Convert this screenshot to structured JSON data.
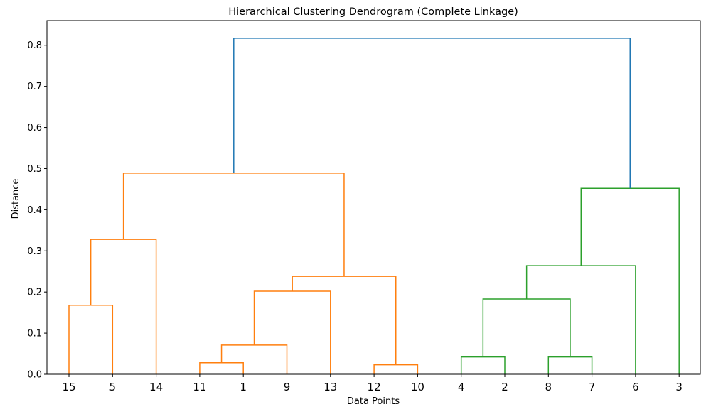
{
  "chart_data": {
    "type": "dendrogram",
    "title": "Hierarchical Clustering Dendrogram (Complete Linkage)",
    "xlabel": "Data Points",
    "ylabel": "Distance",
    "ylim": [
      0,
      0.86
    ],
    "yticks": [
      "0.0",
      "0.1",
      "0.2",
      "0.3",
      "0.4",
      "0.5",
      "0.6",
      "0.7",
      "0.8"
    ],
    "grid": false,
    "leaves": [
      "15",
      "5",
      "14",
      "11",
      "1",
      "9",
      "13",
      "12",
      "10",
      "4",
      "2",
      "8",
      "7",
      "6",
      "3"
    ],
    "colors": {
      "orange": "#ff7f0e",
      "green": "#2ca02c",
      "blue": "#1f77b4"
    },
    "links": [
      {
        "left": 0,
        "right": 1,
        "height": 0.168,
        "color": "orange"
      },
      {
        "left": 0.5,
        "right": 2,
        "height": 0.328,
        "color": "orange"
      },
      {
        "left": 3,
        "right": 4,
        "height": 0.028,
        "color": "orange"
      },
      {
        "left": 3.5,
        "right": 5,
        "height": 0.071,
        "color": "orange"
      },
      {
        "left": 4.25,
        "right": 6,
        "height": 0.202,
        "color": "orange"
      },
      {
        "left": 7,
        "right": 8,
        "height": 0.023,
        "color": "orange"
      },
      {
        "left": 5.125,
        "right": 7.5,
        "height": 0.238,
        "color": "orange"
      },
      {
        "left": 1.25,
        "right": 6.3125,
        "height": 0.489,
        "color": "orange"
      },
      {
        "left": 9,
        "right": 10,
        "height": 0.042,
        "color": "green"
      },
      {
        "left": 11,
        "right": 12,
        "height": 0.042,
        "color": "green"
      },
      {
        "left": 9.5,
        "right": 11.5,
        "height": 0.183,
        "color": "green"
      },
      {
        "left": 10.5,
        "right": 13,
        "height": 0.264,
        "color": "green"
      },
      {
        "left": 11.75,
        "right": 14,
        "height": 0.452,
        "color": "green"
      },
      {
        "left": 3.78125,
        "right": 12.875,
        "height": 0.817,
        "color": "blue"
      }
    ]
  }
}
